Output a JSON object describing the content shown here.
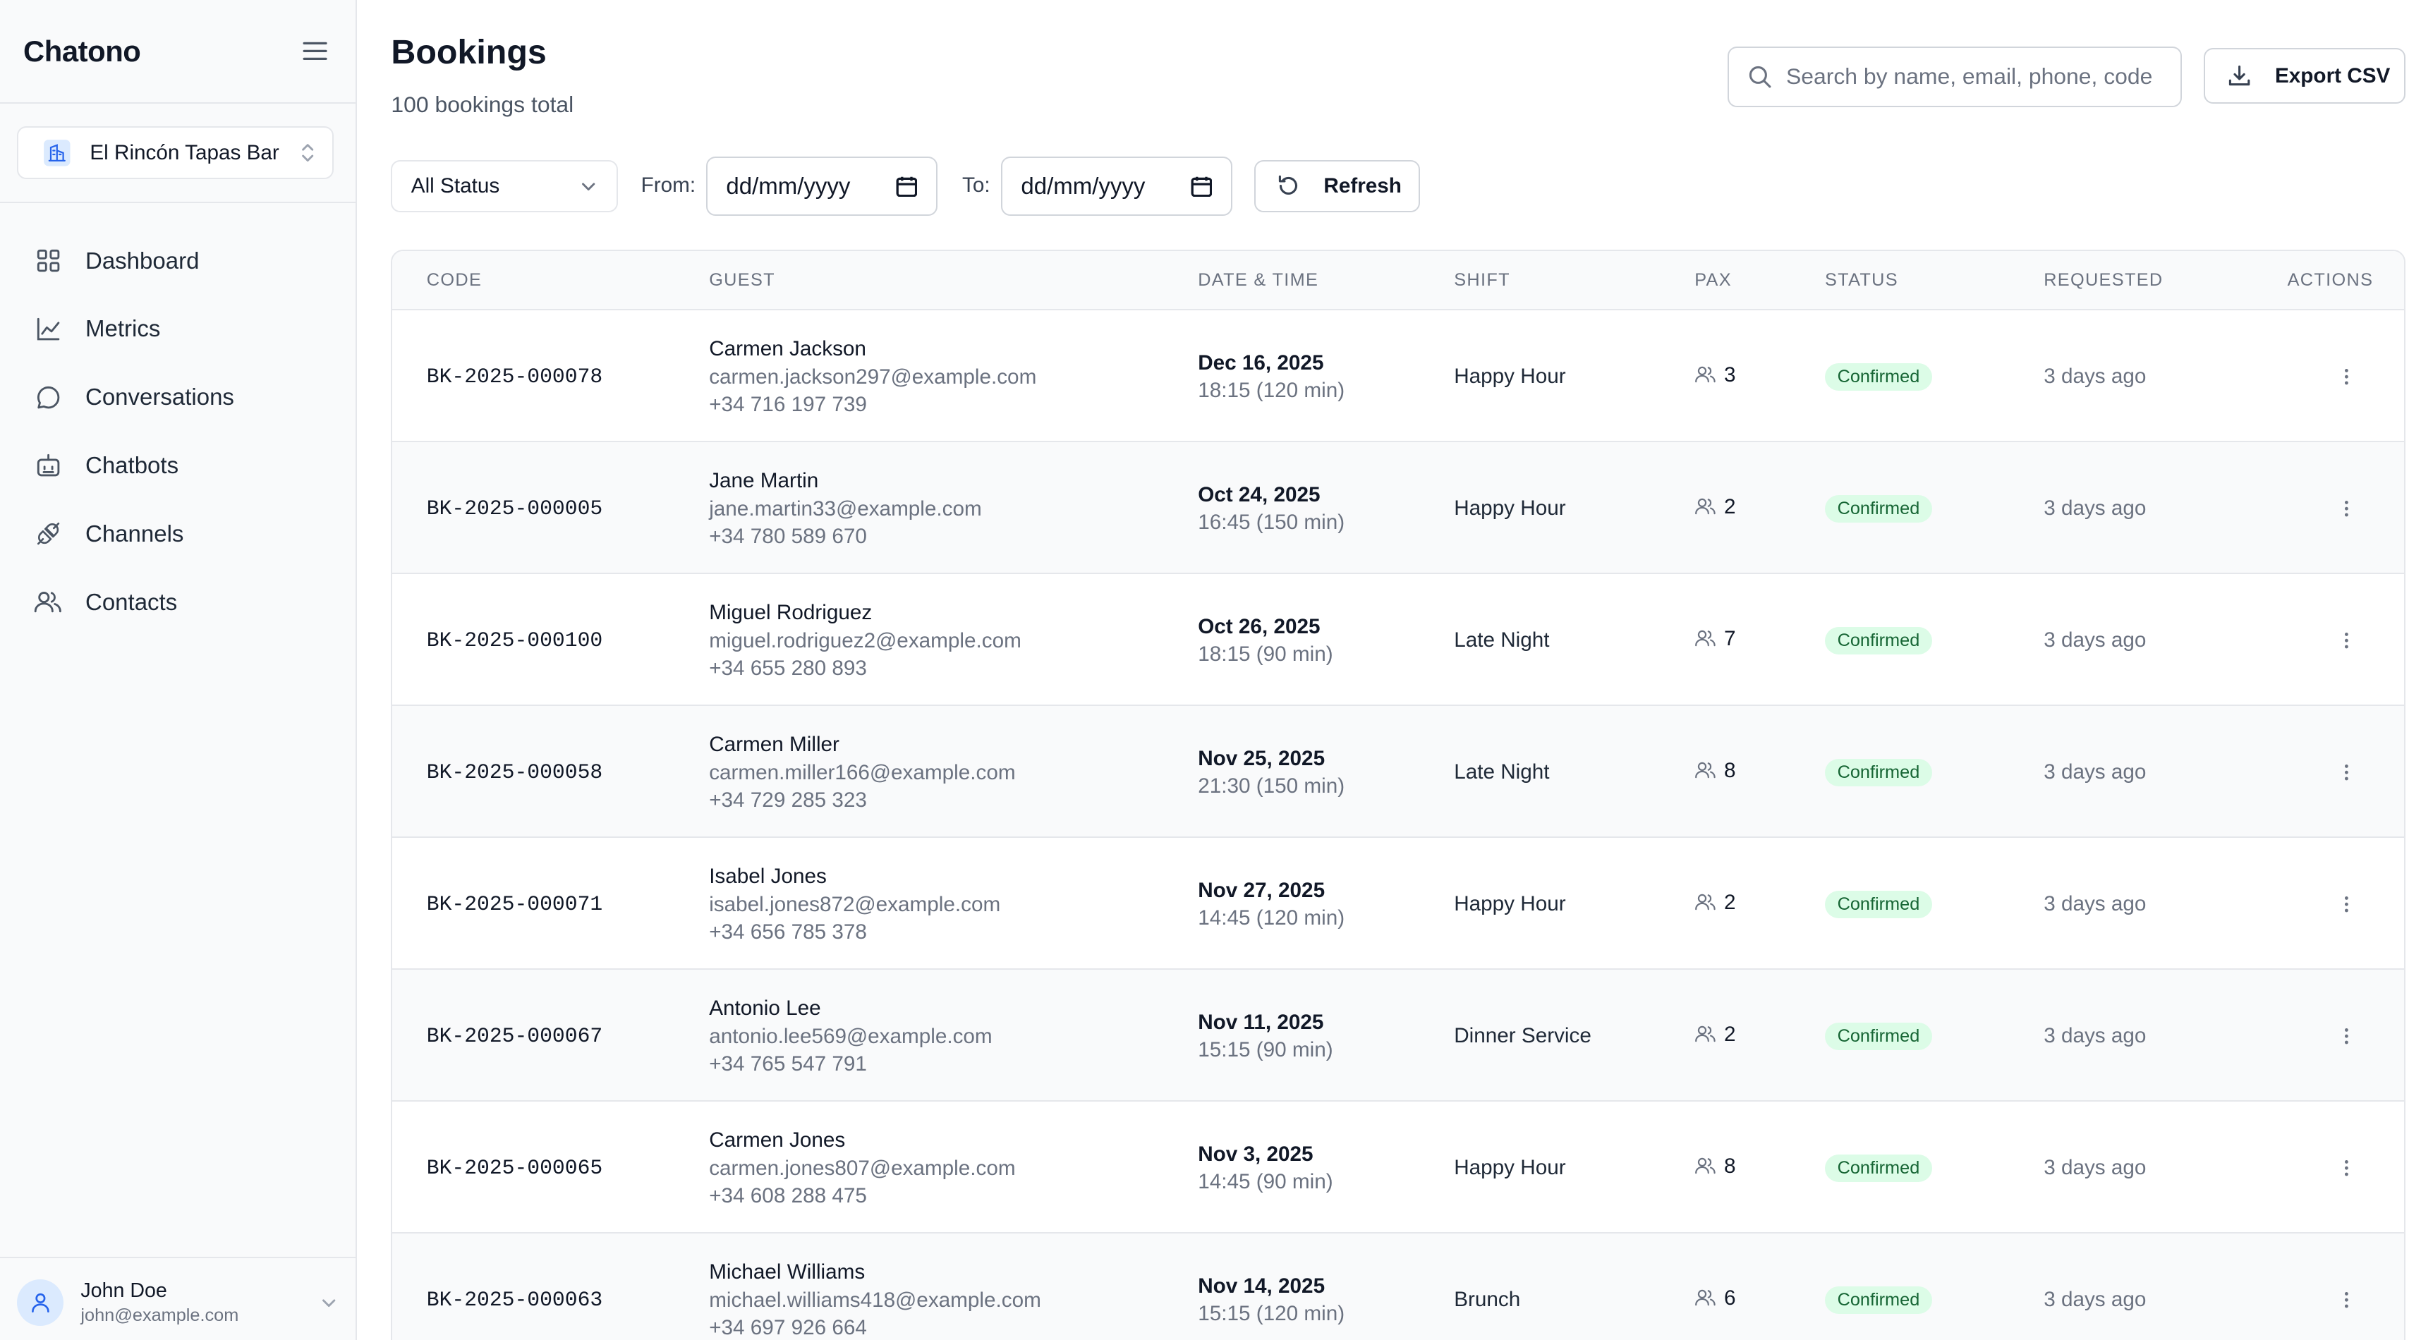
{
  "app": {
    "name": "Chatono"
  },
  "org": {
    "name": "El Rincón Tapas Bar"
  },
  "nav": [
    {
      "label": "Dashboard",
      "icon": "dashboard-icon"
    },
    {
      "label": "Metrics",
      "icon": "chart-line-icon"
    },
    {
      "label": "Conversations",
      "icon": "chat-bubble-icon"
    },
    {
      "label": "Chatbots",
      "icon": "bot-icon"
    },
    {
      "label": "Channels",
      "icon": "plug-icon"
    },
    {
      "label": "Contacts",
      "icon": "users-icon"
    }
  ],
  "user": {
    "name": "John Doe",
    "email": "john@example.com"
  },
  "page": {
    "title": "Bookings",
    "subtitle": "100 bookings total"
  },
  "search": {
    "placeholder": "Search by name, email, phone, code"
  },
  "export": {
    "label": "Export CSV"
  },
  "filters": {
    "status": "All Status",
    "from_label": "From:",
    "from_value": "dd/mm/yyyy",
    "to_label": "To:",
    "to_value": "dd/mm/yyyy",
    "refresh": "Refresh"
  },
  "table": {
    "columns": [
      "CODE",
      "GUEST",
      "DATE & TIME",
      "SHIFT",
      "PAX",
      "STATUS",
      "REQUESTED",
      "ACTIONS"
    ],
    "rows": [
      {
        "code": "BK-2025-000078",
        "name": "Carmen Jackson",
        "email": "carmen.jackson297@example.com",
        "phone": "+34 716 197 739",
        "date": "Dec 16, 2025",
        "time": "18:15 (120 min)",
        "shift": "Happy Hour",
        "pax": "3",
        "status": "Confirmed",
        "requested": "3 days ago"
      },
      {
        "code": "BK-2025-000005",
        "name": "Jane Martin",
        "email": "jane.martin33@example.com",
        "phone": "+34 780 589 670",
        "date": "Oct 24, 2025",
        "time": "16:45 (150 min)",
        "shift": "Happy Hour",
        "pax": "2",
        "status": "Confirmed",
        "requested": "3 days ago"
      },
      {
        "code": "BK-2025-000100",
        "name": "Miguel Rodriguez",
        "email": "miguel.rodriguez2@example.com",
        "phone": "+34 655 280 893",
        "date": "Oct 26, 2025",
        "time": "18:15 (90 min)",
        "shift": "Late Night",
        "pax": "7",
        "status": "Confirmed",
        "requested": "3 days ago"
      },
      {
        "code": "BK-2025-000058",
        "name": "Carmen Miller",
        "email": "carmen.miller166@example.com",
        "phone": "+34 729 285 323",
        "date": "Nov 25, 2025",
        "time": "21:30 (150 min)",
        "shift": "Late Night",
        "pax": "8",
        "status": "Confirmed",
        "requested": "3 days ago"
      },
      {
        "code": "BK-2025-000071",
        "name": "Isabel Jones",
        "email": "isabel.jones872@example.com",
        "phone": "+34 656 785 378",
        "date": "Nov 27, 2025",
        "time": "14:45 (120 min)",
        "shift": "Happy Hour",
        "pax": "2",
        "status": "Confirmed",
        "requested": "3 days ago"
      },
      {
        "code": "BK-2025-000067",
        "name": "Antonio Lee",
        "email": "antonio.lee569@example.com",
        "phone": "+34 765 547 791",
        "date": "Nov 11, 2025",
        "time": "15:15 (90 min)",
        "shift": "Dinner Service",
        "pax": "2",
        "status": "Confirmed",
        "requested": "3 days ago"
      },
      {
        "code": "BK-2025-000065",
        "name": "Carmen Jones",
        "email": "carmen.jones807@example.com",
        "phone": "+34 608 288 475",
        "date": "Nov 3, 2025",
        "time": "14:45 (90 min)",
        "shift": "Happy Hour",
        "pax": "8",
        "status": "Confirmed",
        "requested": "3 days ago"
      },
      {
        "code": "BK-2025-000063",
        "name": "Michael Williams",
        "email": "michael.williams418@example.com",
        "phone": "+34 697 926 664",
        "date": "Nov 14, 2025",
        "time": "15:15 (120 min)",
        "shift": "Brunch",
        "pax": "6",
        "status": "Confirmed",
        "requested": "3 days ago"
      }
    ]
  },
  "colors": {
    "confirmed_bg": "#dcfce7",
    "confirmed_text": "#166534",
    "sidebar_bg": "#f9fafb"
  }
}
